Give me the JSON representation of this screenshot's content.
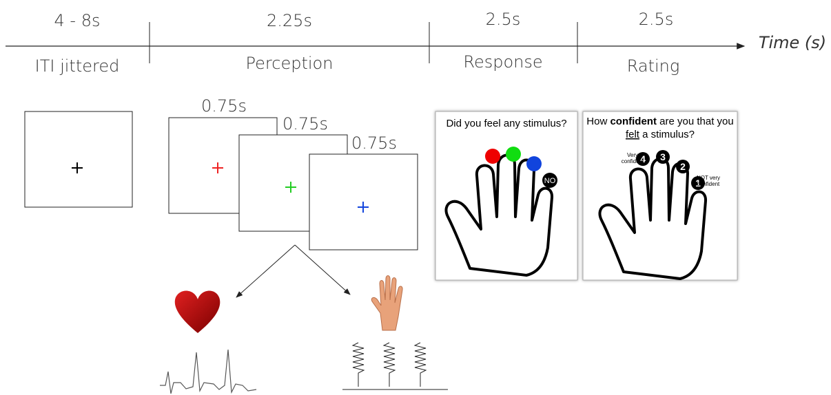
{
  "timeline": {
    "axis_label": "Time (s)",
    "phases": [
      {
        "duration": "4 - 8s",
        "label": "ITI jittered"
      },
      {
        "duration": "2.25s",
        "label": "Perception"
      },
      {
        "duration": "2.5s",
        "label": "Response"
      },
      {
        "duration": "2.5s",
        "label": "Rating"
      }
    ]
  },
  "perception": {
    "durations": [
      "0.75s",
      "0.75s",
      "0.75s"
    ]
  },
  "response_panel": {
    "question": "Did you feel any stimulus?",
    "no_label": "NO"
  },
  "rating_panel": {
    "question_parts": [
      "How",
      "confident",
      "are you that you",
      "felt",
      "a stimulus?"
    ],
    "scale": [
      {
        "number": "4",
        "label_lines": [
          "Very",
          "confident"
        ]
      },
      {
        "number": "3",
        "label_lines": []
      },
      {
        "number": "2",
        "label_lines": []
      },
      {
        "number": "1",
        "label_lines": [
          "NOT very",
          "confident"
        ]
      }
    ]
  }
}
